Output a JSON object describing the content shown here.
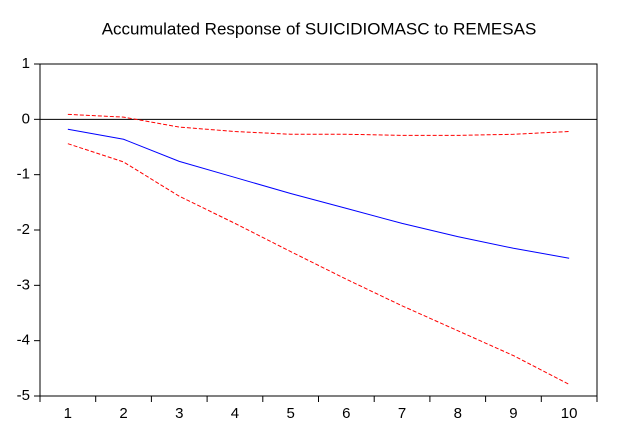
{
  "chart_data": {
    "type": "line",
    "title": "Accumulated Response of SUICIDIOMASC to REMESAS",
    "categories": [
      "1",
      "2",
      "3",
      "4",
      "5",
      "6",
      "7",
      "8",
      "9",
      "10"
    ],
    "series": [
      {
        "color": "#0000ff",
        "style": "solid",
        "values": [
          -0.18,
          -0.36,
          -0.76,
          -1.05,
          -1.34,
          -1.61,
          -1.88,
          -2.12,
          -2.33,
          -2.51
        ]
      },
      {
        "color": "#ff0000",
        "style": "dashed",
        "values": [
          0.09,
          0.04,
          -0.14,
          -0.22,
          -0.27,
          -0.27,
          -0.29,
          -0.29,
          -0.27,
          -0.22
        ]
      },
      {
        "color": "#ff0000",
        "style": "dashed",
        "values": [
          -0.44,
          -0.77,
          -1.39,
          -1.88,
          -2.39,
          -2.89,
          -3.37,
          -3.82,
          -4.27,
          -4.79
        ]
      }
    ],
    "ylim": [
      -5,
      1
    ],
    "yticks": [
      -5,
      -4,
      -3,
      -2,
      -1,
      0,
      1
    ],
    "zero_line": true
  }
}
